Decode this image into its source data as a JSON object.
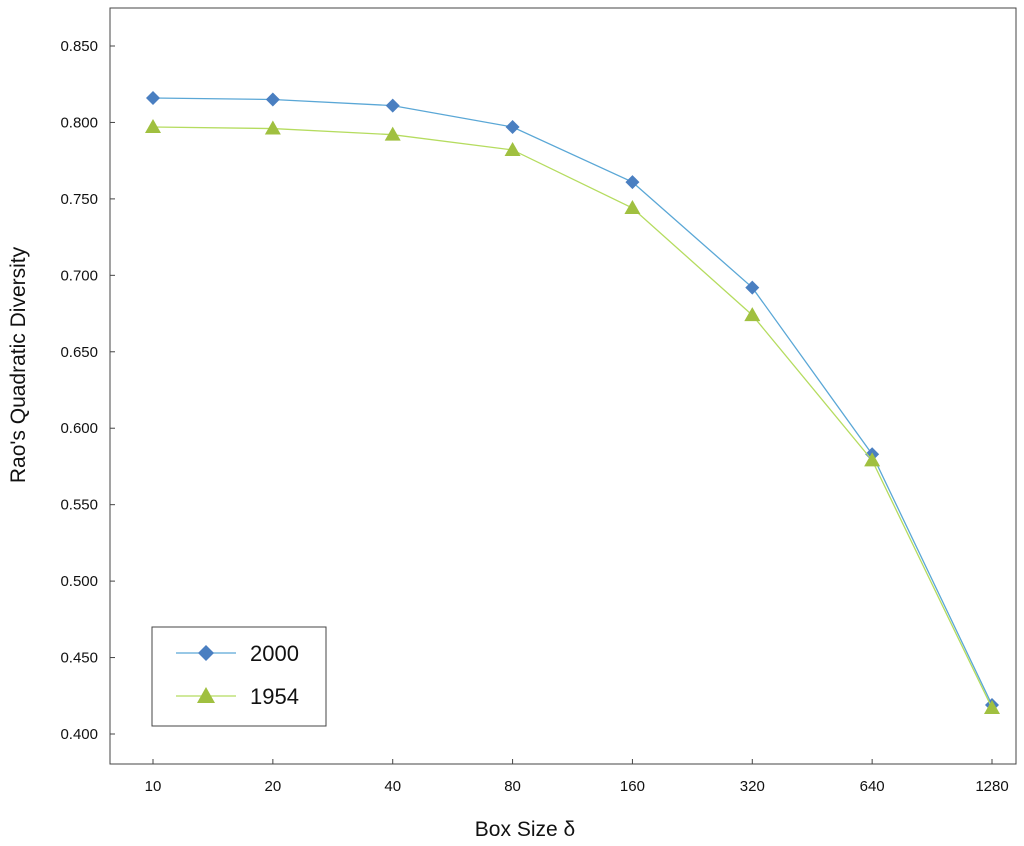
{
  "chart_data": {
    "type": "line",
    "title": "",
    "xlabel": "Box Size δ",
    "ylabel": "Rao's Quadratic Diversity",
    "categories": [
      "10",
      "20",
      "40",
      "80",
      "160",
      "320",
      "640",
      "1280"
    ],
    "y_ticks": [
      "0.400",
      "0.450",
      "0.500",
      "0.550",
      "0.600",
      "0.650",
      "0.700",
      "0.750",
      "0.800",
      "0.850"
    ],
    "ylim": [
      0.4,
      0.85
    ],
    "grid": false,
    "legend_position": "bottom-left",
    "series": [
      {
        "name": "2000",
        "marker": "diamond",
        "color": "#4a7fc1",
        "line_color": "#5aa7d6",
        "values": [
          0.816,
          0.815,
          0.811,
          0.797,
          0.761,
          0.692,
          0.583,
          0.419
        ]
      },
      {
        "name": "1954",
        "marker": "triangle",
        "color": "#a0c040",
        "line_color": "#b5dc5f",
        "values": [
          0.797,
          0.796,
          0.792,
          0.782,
          0.744,
          0.674,
          0.579,
          0.417
        ]
      }
    ]
  }
}
